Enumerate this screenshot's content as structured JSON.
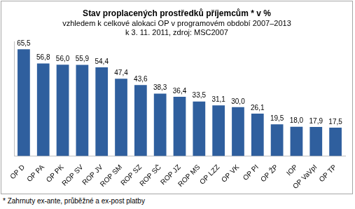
{
  "chart_data": {
    "type": "bar",
    "title": "Stav proplacených prostředků příjemcům * v %",
    "subtitle": [
      "vzhledem k celkové alokaci OP v programovém období 2007–2013",
      "k 3. 11. 2011, zdroj: MSC2007"
    ],
    "annotations": [
      "* Zahrnuty ex-ante, průběžné a ex-post platby"
    ],
    "categories": [
      "OP D",
      "OP PA",
      "OP PK",
      "ROP SV",
      "ROP JV",
      "ROP SM",
      "ROP SZ",
      "ROP SČ",
      "ROP JZ",
      "ROP MS",
      "OP LZZ",
      "OP VK",
      "OP PI",
      "OP ŽP",
      "IOP",
      "OP VaVpI",
      "OP TP"
    ],
    "values": [
      65.5,
      56.8,
      56.0,
      55.9,
      54.4,
      47.4,
      43.6,
      38.3,
      36.4,
      33.5,
      31.1,
      30.0,
      26.1,
      19.5,
      18.0,
      17.9,
      17.5
    ],
    "value_labels": [
      "65,5",
      "56,8",
      "56,0",
      "55,9",
      "54,4",
      "47,4",
      "43,6",
      "38,3",
      "36,4",
      "33,5",
      "31,1",
      "30,0",
      "26,1",
      "19,5",
      "18,0",
      "17,9",
      "17,5"
    ],
    "color": "#2f5f9e",
    "ylim": [
      0,
      70
    ],
    "grid": false,
    "data_labels": true,
    "tick_labels": "x"
  }
}
